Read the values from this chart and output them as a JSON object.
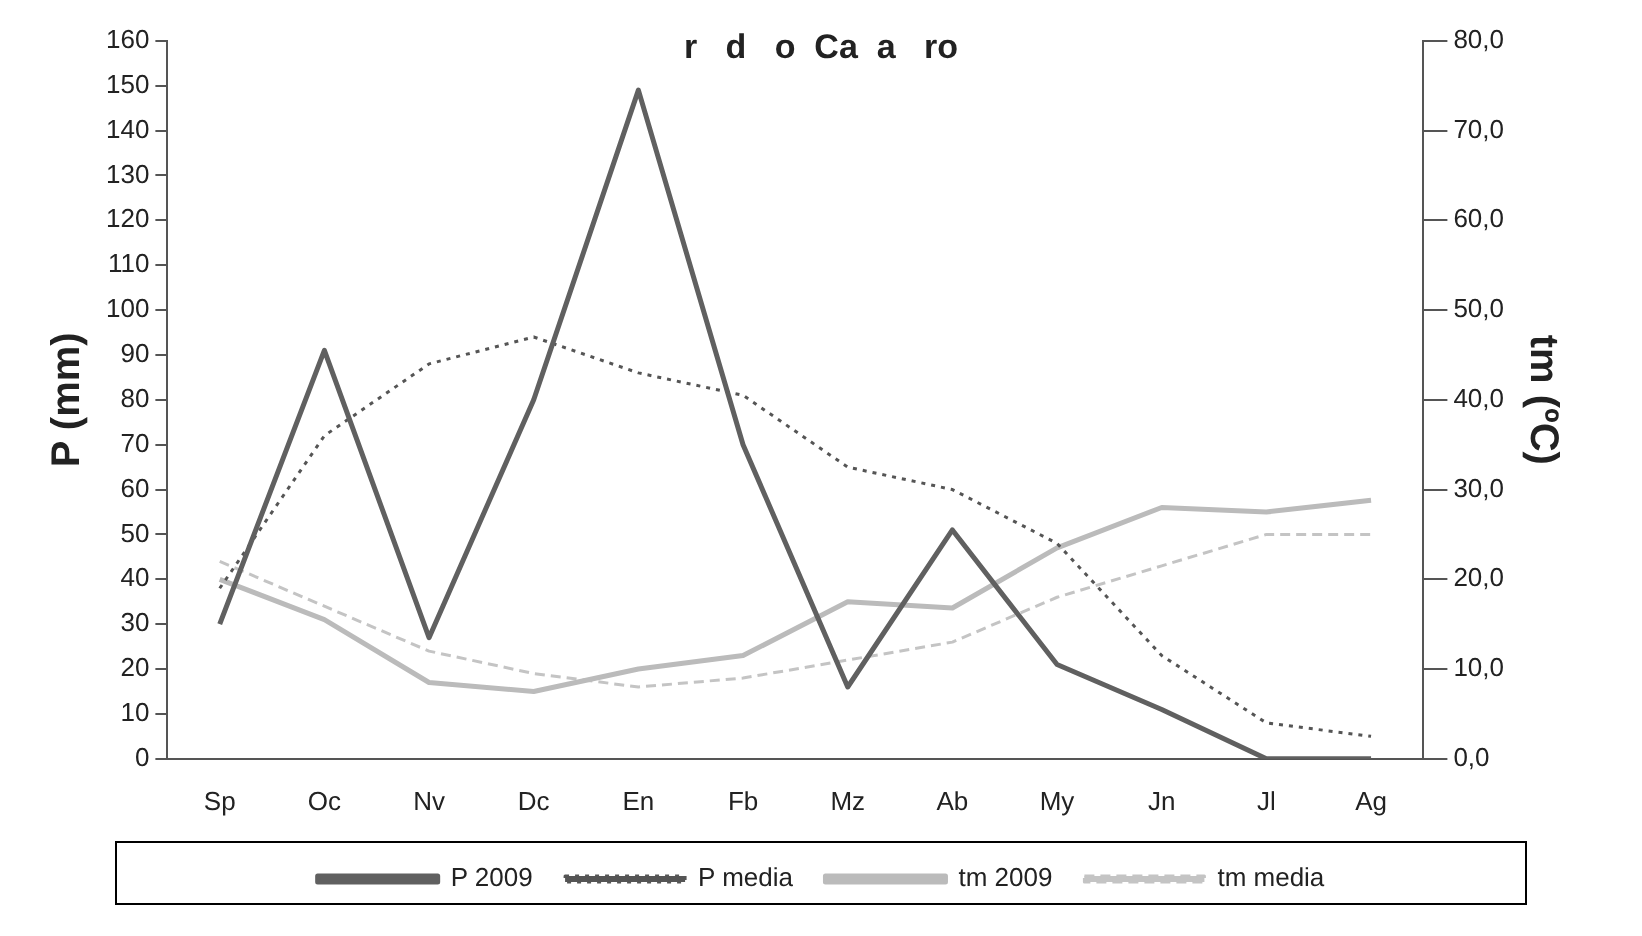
{
  "chart_data": {
    "type": "line",
    "title": "r   d   o  Ca  a   ro",
    "ylabel": "P (mm)",
    "y2label": "tm (ºC)",
    "categories": [
      "Sp",
      "Oc",
      "Nv",
      "Dc",
      "En",
      "Fb",
      "Mz",
      "Ab",
      "My",
      "Jn",
      "Jl",
      "Ag"
    ],
    "series": [
      {
        "name": "P 2009",
        "color": "#606060",
        "line_style": "solid",
        "values": [
          30,
          91,
          27,
          80,
          149,
          70,
          16,
          51,
          21,
          11,
          0,
          0
        ]
      },
      {
        "name": "P media",
        "color": "#555555",
        "line_style": "dotted",
        "values": [
          38,
          72,
          88,
          94,
          86,
          81,
          65,
          60,
          48,
          23,
          8,
          5
        ]
      },
      {
        "name": "tm 2009",
        "color": "#bbbbbb",
        "line_style": "solid",
        "axis": "y2",
        "values": [
          20.0,
          15.5,
          8.5,
          7.5,
          10.0,
          11.5,
          17.5,
          16.8,
          23.5,
          28.0,
          27.5,
          28.8
        ]
      },
      {
        "name": "tm media",
        "color": "#c4c4c4",
        "line_style": "dashed",
        "axis": "y2",
        "values": [
          22.0,
          17.0,
          12.0,
          9.5,
          8.0,
          9.0,
          11.0,
          13.0,
          18.0,
          21.5,
          25.0,
          25.0
        ]
      }
    ],
    "ylim": [
      0,
      160
    ],
    "yticks": [
      0,
      10,
      20,
      30,
      40,
      50,
      60,
      70,
      80,
      90,
      100,
      110,
      120,
      130,
      140,
      150,
      160
    ],
    "y2lim": [
      0,
      80
    ],
    "y2ticks": [
      {
        "value": 0,
        "label": "0,0"
      },
      {
        "value": 10,
        "label": "10,0"
      },
      {
        "value": 20,
        "label": "20,0"
      },
      {
        "value": 30,
        "label": "30,0"
      },
      {
        "value": 40,
        "label": "40,0"
      },
      {
        "value": 50,
        "label": "50,0"
      },
      {
        "value": 60,
        "label": "60,0"
      },
      {
        "value": 70,
        "label": "70,0"
      },
      {
        "value": 80,
        "label": "80,0"
      }
    ],
    "grid": false,
    "legend": "bottom",
    "marker": "none"
  }
}
